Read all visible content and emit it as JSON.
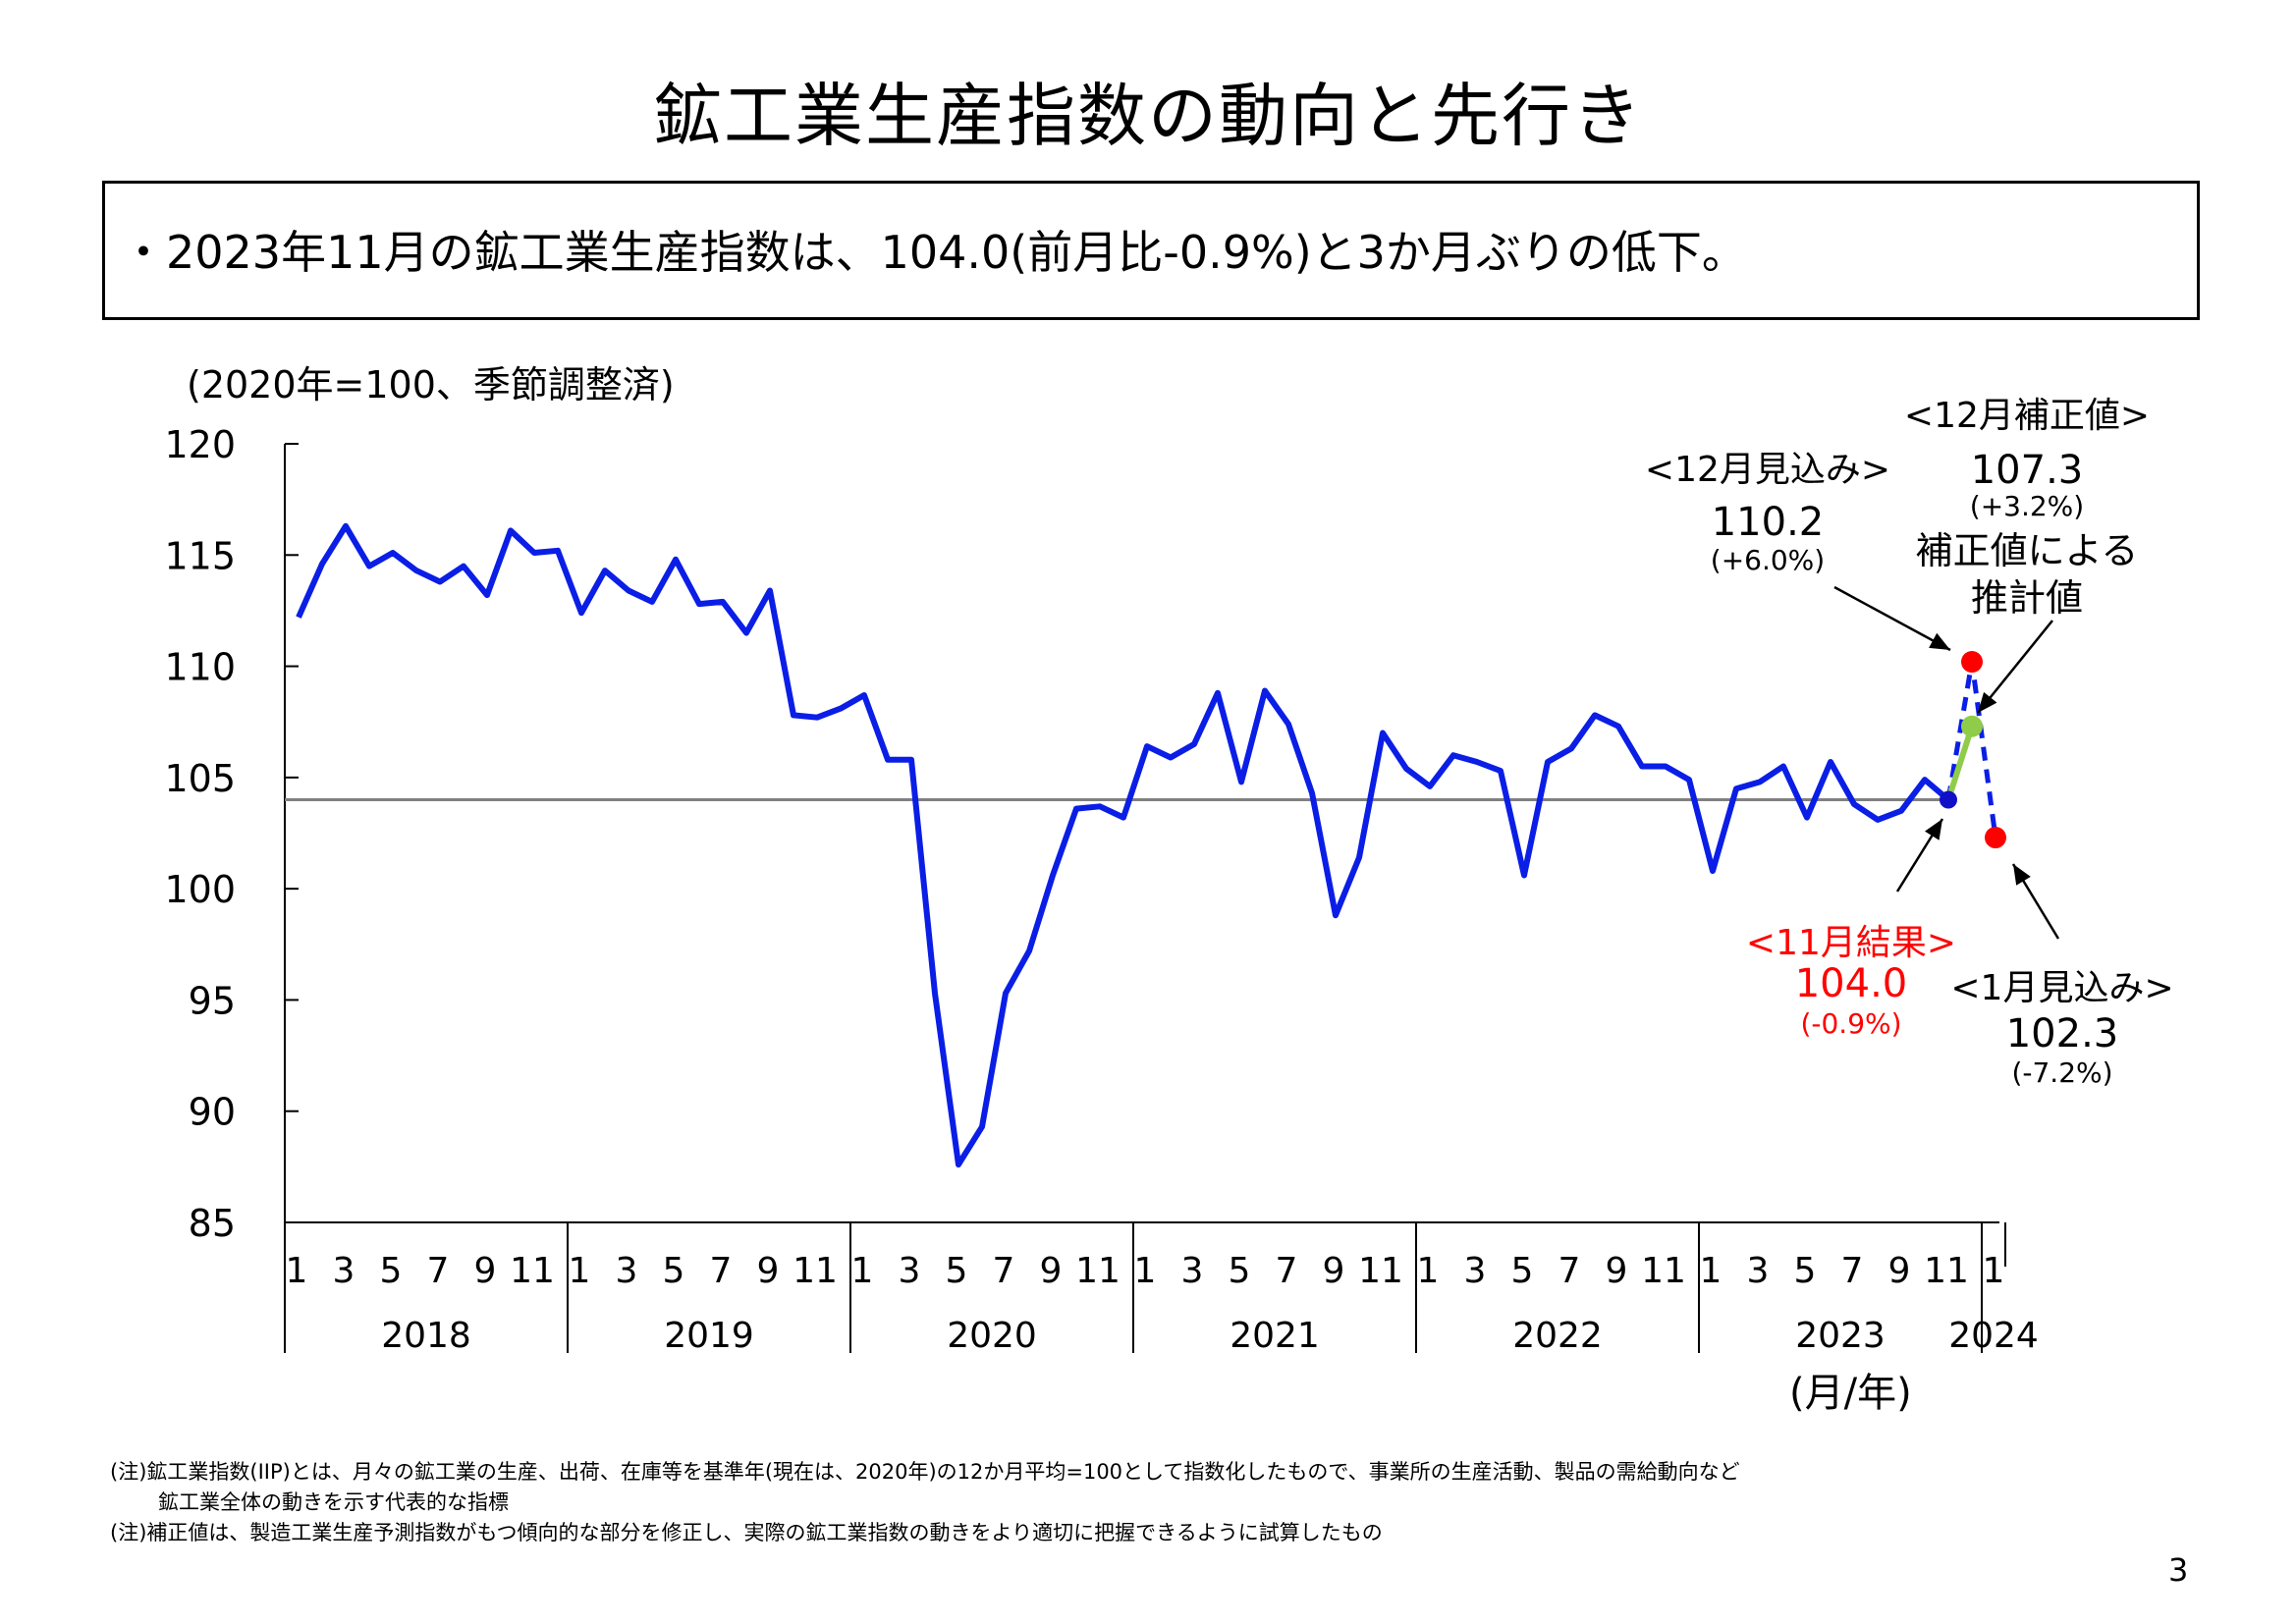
{
  "page": {
    "title": "鉱工業生産指数の動向と先行き",
    "summary": "・2023年11月の鉱工業生産指数は、104.0(前月比-0.9%)と3か月ぶりの低下。",
    "notes": [
      "(注)鉱工業指数(IIP)とは、月々の鉱工業の生産、出荷、在庫等を基準年(現在は、2020年)の12か月平均=100として指数化したもので、事業所の生産活動、製品の需給動向など",
      "鉱工業全体の動きを示す代表的な指標",
      "(注)補正値は、製造工業生産予測指数がもつ傾向的な部分を修正し、実際の鉱工業指数の動きをより適切に把握できるように試算したもの"
    ],
    "page_number": "3"
  },
  "chart_data": {
    "type": "line",
    "unit_label": "(2020年=100、季節調整済)",
    "axis_unit_label": "(月/年)",
    "ylim": [
      85,
      120
    ],
    "yticks": [
      85,
      90,
      95,
      100,
      105,
      110,
      115,
      120
    ],
    "month_labels": [
      "1",
      "3",
      "5",
      "7",
      "9",
      "11"
    ],
    "years": [
      "2018",
      "2019",
      "2020",
      "2021",
      "2022",
      "2023"
    ],
    "final_year": "2024",
    "final_month_label": "1",
    "series": [
      {
        "values": [
          112.2,
          114.6,
          116.3,
          114.5,
          115.1,
          114.3,
          113.8,
          114.5,
          113.2,
          116.1,
          115.1,
          115.2,
          112.4,
          114.3,
          113.4,
          112.9,
          114.8,
          112.8,
          112.9,
          111.5,
          113.4,
          107.8,
          107.7,
          108.1,
          108.7,
          105.8,
          105.8,
          95.3,
          87.6,
          89.3,
          95.3,
          97.2,
          100.6,
          103.6,
          103.7,
          103.2,
          106.4,
          105.9,
          106.5,
          108.8,
          104.8,
          108.9,
          107.4,
          104.3,
          98.8,
          101.4,
          107.0,
          105.4,
          104.6,
          106.0,
          105.7,
          105.3,
          100.6,
          105.7,
          106.3,
          107.8,
          107.3,
          105.5,
          105.5,
          104.9,
          100.8,
          104.5,
          104.8,
          105.5,
          103.2,
          105.7,
          103.8,
          103.1,
          103.5,
          104.9,
          104.0
        ],
        "color": "#0a1ee6"
      }
    ],
    "reference_line": {
      "value": 104.0,
      "color": "#808080"
    },
    "forecast": {
      "dec_forecast": {
        "value": 110.2,
        "label": "<12月見込み>",
        "value_text": "110.2",
        "change_text": "(+6.0%)",
        "color": "#ff0000"
      },
      "jan_forecast": {
        "value": 102.3,
        "label": "<1月見込み>",
        "value_text": "102.3",
        "change_text": "(-7.2%)",
        "color": "#ff0000"
      },
      "dec_corrected": {
        "value": 107.3,
        "label": "<12月補正値>",
        "value_text": "107.3",
        "change_text": "(+3.2%)",
        "note_line1": "補正値による",
        "note_line2": "推計値",
        "color": "#8fcc4a"
      },
      "nov_result": {
        "value": 104.0,
        "label": "<11月結果>",
        "value_text": "104.0",
        "change_text": "(-0.9%)",
        "color": "#ff0000",
        "marker_color": "#1010c8"
      }
    }
  }
}
